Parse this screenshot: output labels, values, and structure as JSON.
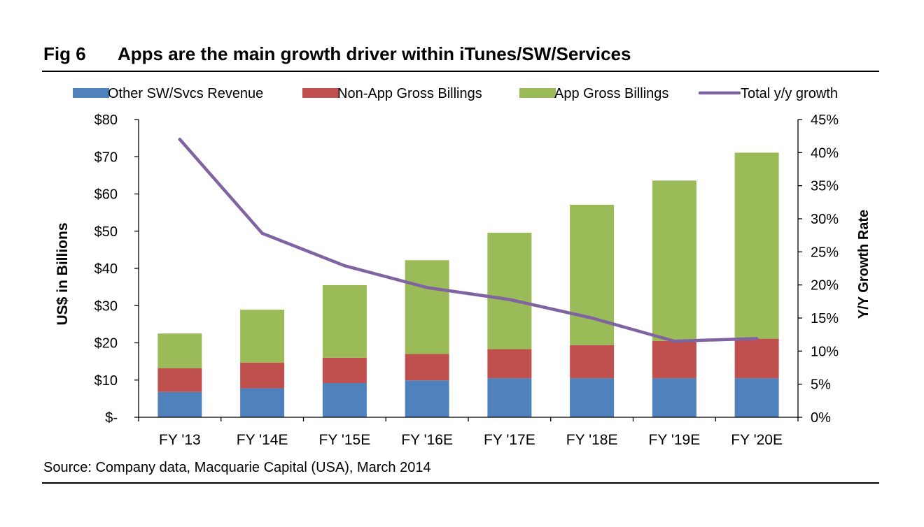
{
  "figure": {
    "number": "Fig 6",
    "title": "Apps are the main growth driver within iTunes/SW/Services",
    "source": "Source: Company data, Macquarie Capital (USA), March 2014"
  },
  "colors": {
    "other": "#4f81bd",
    "non_app": "#c0504d",
    "app": "#9bbb59",
    "growth": "#8064a2"
  },
  "chart_data": {
    "type": "bar",
    "stacked": true,
    "categories": [
      "FY '13",
      "FY '14E",
      "FY '15E",
      "FY '16E",
      "FY '17E",
      "FY '18E",
      "FY '19E",
      "FY '20E"
    ],
    "series": [
      {
        "name": "Other SW/Svcs Revenue",
        "type": "bar",
        "axis": "left",
        "values": [
          6.8,
          7.8,
          9.2,
          9.9,
          10.5,
          10.5,
          10.5,
          10.5
        ]
      },
      {
        "name": "Non-App Gross Billings",
        "type": "bar",
        "axis": "left",
        "values": [
          6.4,
          6.9,
          6.8,
          7.1,
          7.8,
          8.9,
          10.0,
          10.6
        ]
      },
      {
        "name": "App Gross Billings",
        "type": "bar",
        "axis": "left",
        "values": [
          9.3,
          14.2,
          19.5,
          25.2,
          31.3,
          37.7,
          43.1,
          50.0
        ]
      },
      {
        "name": "Total y/y growth",
        "type": "line",
        "axis": "right",
        "values": [
          42.0,
          27.8,
          22.9,
          19.6,
          17.8,
          15.0,
          11.5,
          11.9
        ]
      }
    ],
    "ylabel": "US$ in Billions",
    "ylabel_right": "Y/Y Growth Rate",
    "ylim": [
      0,
      80
    ],
    "ylim_right": [
      0,
      45
    ],
    "yticks": [
      0,
      10,
      20,
      30,
      40,
      50,
      60,
      70,
      80
    ],
    "ytick_labels": [
      "$-",
      "$10",
      "$20",
      "$30",
      "$40",
      "$50",
      "$60",
      "$70",
      "$80"
    ],
    "yticks_right": [
      0,
      5,
      10,
      15,
      20,
      25,
      30,
      35,
      40,
      45
    ],
    "ytick_labels_right": [
      "0%",
      "5%",
      "10%",
      "15%",
      "20%",
      "25%",
      "30%",
      "35%",
      "40%",
      "45%"
    ],
    "legend_position": "top",
    "grid": false
  }
}
